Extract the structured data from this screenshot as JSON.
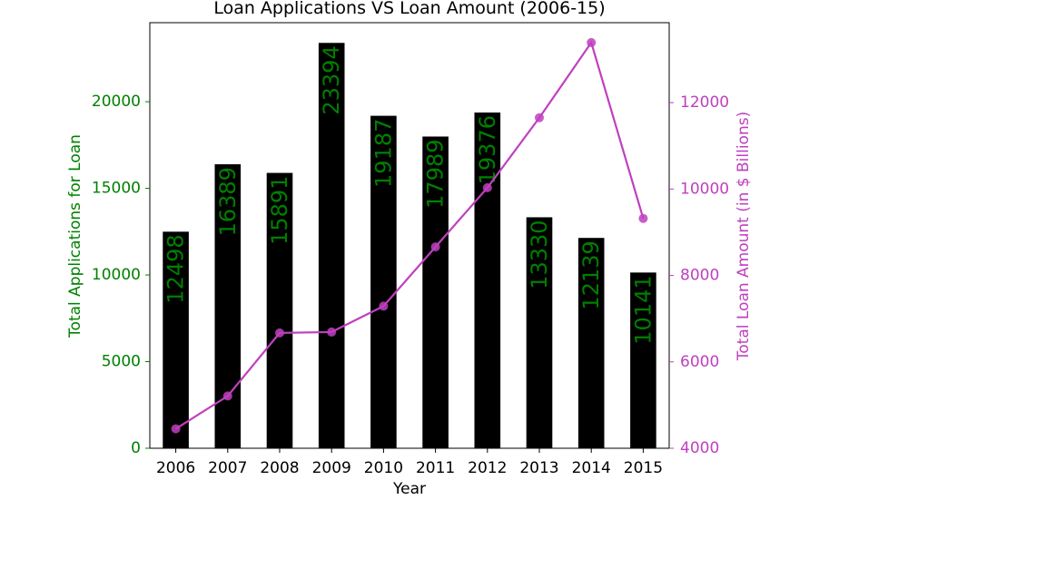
{
  "chart_data": {
    "type": "bar",
    "title": "Loan Applications VS Loan Amount (2006-15)",
    "xlabel": "Year",
    "categories": [
      "2006",
      "2007",
      "2008",
      "2009",
      "2010",
      "2011",
      "2012",
      "2013",
      "2014",
      "2015"
    ],
    "series": [
      {
        "type": "bar",
        "axis": "left",
        "values": [
          12498,
          16389,
          15891,
          23394,
          19187,
          17989,
          19376,
          13330,
          12139,
          10141
        ],
        "color": "#000000"
      },
      {
        "type": "line",
        "axis": "right",
        "values": [
          4450,
          5210,
          6670,
          6690,
          7290,
          8660,
          10030,
          11650,
          13390,
          9320
        ],
        "color": "#bf40bf"
      }
    ],
    "y_left": {
      "label": "Total Applications for Loan",
      "lim": [
        0,
        24560
      ],
      "ticks": [
        0,
        5000,
        10000,
        15000,
        20000
      ],
      "color": "#008000"
    },
    "y_right": {
      "label": "Total Loan Amount (in $ Billions)",
      "lim": [
        4000,
        13850
      ],
      "ticks": [
        4000,
        6000,
        8000,
        10000,
        12000
      ],
      "color": "#bf40bf"
    },
    "bar_labels": {
      "show": true,
      "rotation": "vertical",
      "color": "#008000"
    },
    "grid": false,
    "legend": "none"
  }
}
